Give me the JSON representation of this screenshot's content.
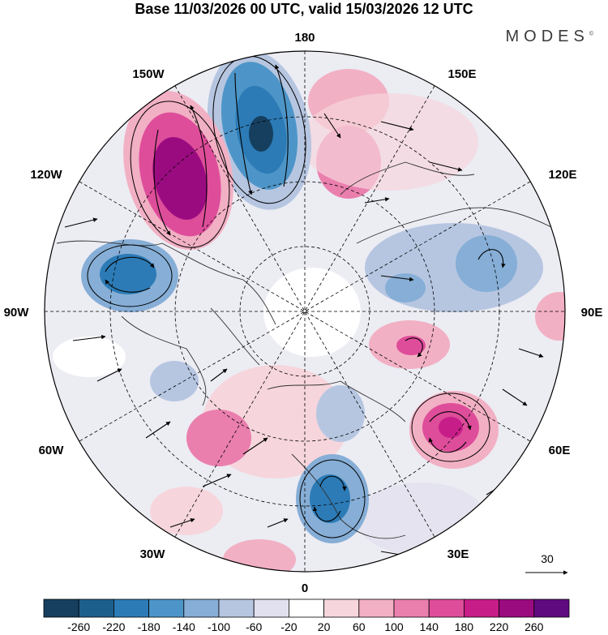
{
  "title": "Base 11/03/2026 00 UTC, valid 15/03/2026 12 UTC",
  "brand": "MODES",
  "brand_mark": "©",
  "longitudes": {
    "n180": "180",
    "n150e": "150E",
    "n120e": "120E",
    "n90e": "90E",
    "n60e": "60E",
    "n30e": "30E",
    "n0": "0",
    "n30w": "30W",
    "n60w": "60W",
    "n90w": "90W",
    "n120w": "120W",
    "n150w": "150W"
  },
  "vector_scale": {
    "label": "30"
  },
  "colorbar": {
    "ticks": [
      "-260",
      "-220",
      "-180",
      "-140",
      "-100",
      "-60",
      "-20",
      "20",
      "60",
      "100",
      "140",
      "180",
      "220",
      "260"
    ],
    "colors": [
      "#163f5f",
      "#1d5f8c",
      "#2c7bb6",
      "#4d95c8",
      "#86aed6",
      "#b6c6e1",
      "#e1e0ef",
      "#ffffff",
      "#f6d6dc",
      "#f2b0c4",
      "#ea7fae",
      "#de4d9a",
      "#c71d89",
      "#9b0b80",
      "#600a7f"
    ]
  },
  "colors": {
    "land_line": "#303030",
    "ocean_bg": "#f2f2f2"
  }
}
